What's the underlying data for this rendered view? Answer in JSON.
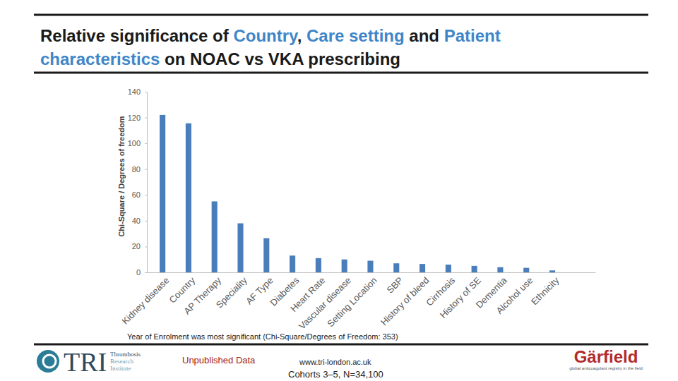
{
  "chart_data": {
    "type": "bar",
    "title": [
      [
        {
          "text": "Relative significance of ",
          "color": "#1a1a1a"
        },
        {
          "text": "Country",
          "color": "#3f86c8"
        },
        {
          "text": ", ",
          "color": "#1a1a1a"
        },
        {
          "text": "Care setting",
          "color": "#3f86c8"
        },
        {
          "text": " and ",
          "color": "#1a1a1a"
        },
        {
          "text": "Patient",
          "color": "#3f86c8"
        }
      ],
      [
        {
          "text": "characteristics",
          "color": "#3f86c8"
        },
        {
          "text": " on NOAC vs VKA prescribing",
          "color": "#1a1a1a"
        }
      ]
    ],
    "ylabel": "Chi-Square / Degrees of freedom",
    "categories": [
      "Kidney disease",
      "Country",
      "AP Therapy",
      "Speciality",
      "AF Type",
      "Diabetes",
      "Heart Rate",
      "Vascular disease",
      "Setting Location",
      "SBP",
      "History of bleed",
      "Cirrhosis",
      "History of SE",
      "Dementia",
      "Alcohol use",
      "Ethnicity"
    ],
    "values": [
      122,
      115.5,
      55,
      38,
      26.5,
      13,
      11,
      10,
      9,
      7,
      6.5,
      6,
      5,
      4,
      3.5,
      1.5
    ],
    "color": "#4a7ebb",
    "ylim": [
      0,
      140
    ],
    "yticks": [
      0,
      20,
      40,
      60,
      80,
      100,
      120,
      140
    ],
    "grid": false,
    "annotation": "Year of Enrolment was most significant (Chi-Square/Degrees of Freedom: 353)"
  },
  "footer": {
    "tri_logo": {
      "name": "TRI",
      "subtitle": [
        "Thrombosis",
        "Research",
        "Institute"
      ]
    },
    "status": "Unpublished Data",
    "website": "www.tri-london.ac.uk",
    "cohort": "Cohorts 3–5, N=34,100",
    "garfield_logo": {
      "name": "Gärfield",
      "tagline": "global anticoagulant registry in the field"
    }
  }
}
